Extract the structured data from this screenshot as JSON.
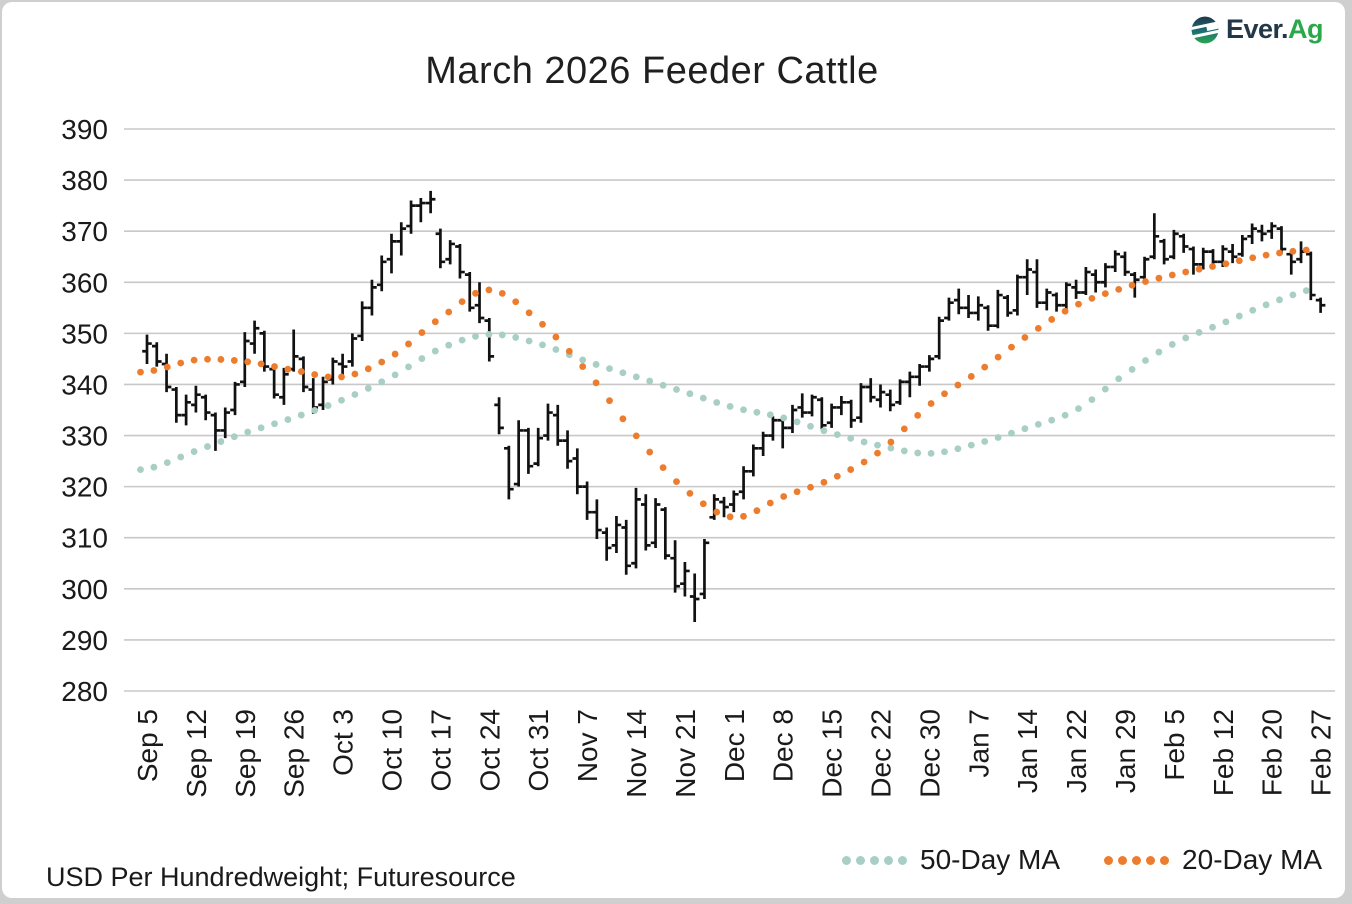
{
  "header": {
    "brand_primary": "Ever.",
    "brand_secondary": "Ag",
    "title": "March 2026 Feeder Cattle"
  },
  "footer": {
    "note": "USD Per Hundredweight; Futuresource"
  },
  "legend": {
    "items": [
      {
        "label": "50-Day MA",
        "color": "#A8CEC5"
      },
      {
        "label": "20-Day MA",
        "color": "#ED7D2E"
      }
    ]
  },
  "chart_data": {
    "type": "ohlc_bar",
    "title": "March 2026 Feeder Cattle",
    "ylabel": "USD Per Hundredweight",
    "ylim": [
      280,
      390
    ],
    "grid": true,
    "legend_position": "bottom-right",
    "colors": {
      "bar": "#111111",
      "grid": "#C8C8C8",
      "tick_text": "#1A1A1A",
      "ma50": "#A8CEC5",
      "ma20": "#ED7D2E"
    },
    "y_axis": {
      "ticks": [
        390,
        380,
        370,
        360,
        350,
        340,
        330,
        320,
        310,
        300,
        290,
        280
      ]
    },
    "x_axis": {
      "ticks": [
        "Sep 5",
        "Sep 12",
        "Sep 19",
        "Sep 26",
        "Oct 3",
        "Oct 10",
        "Oct 17",
        "Oct 24",
        "Oct 31",
        "Nov 7",
        "Nov 14",
        "Nov 21",
        "Dec 1",
        "Dec 8",
        "Dec 15",
        "Dec 22",
        "Dec 30",
        "Jan 7",
        "Jan 14",
        "Jan 22",
        "Jan 29",
        "Feb 5",
        "Feb 12",
        "Feb 20",
        "Feb 27"
      ],
      "bars_per_tick": 5
    },
    "series_ohlc": {
      "name": "Daily price (open, high, low, close)",
      "values": [
        [
          346.5,
          349.75,
          344.0,
          348.0
        ],
        [
          347.5,
          348.25,
          343.5,
          344.5
        ],
        [
          344.0,
          346.0,
          338.5,
          339.5
        ],
        [
          339.0,
          339.5,
          332.5,
          334.0
        ],
        [
          334.0,
          338.0,
          332.0,
          336.5
        ],
        [
          336.0,
          339.75,
          334.5,
          338.0
        ],
        [
          337.5,
          338.0,
          333.0,
          334.5
        ],
        [
          334.0,
          334.5,
          327.0,
          331.0
        ],
        [
          331.0,
          335.5,
          329.5,
          334.5
        ],
        [
          335.0,
          340.5,
          334.0,
          340.0
        ],
        [
          340.5,
          350.25,
          339.5,
          348.5
        ],
        [
          348.0,
          352.5,
          346.0,
          351.0
        ],
        [
          350.0,
          350.5,
          342.5,
          343.5
        ],
        [
          343.0,
          343.5,
          337.25,
          338.0
        ],
        [
          337.5,
          343.25,
          336.0,
          342.0
        ],
        [
          343.0,
          350.75,
          342.5,
          345.5
        ],
        [
          345.0,
          345.5,
          338.5,
          339.5
        ],
        [
          339.0,
          341.25,
          334.25,
          335.5
        ],
        [
          336.0,
          341.5,
          335.0,
          340.5
        ],
        [
          341.0,
          345.25,
          340.0,
          344.5
        ],
        [
          344.0,
          346.0,
          341.5,
          343.5
        ],
        [
          344.5,
          350.0,
          343.5,
          349.0
        ],
        [
          349.5,
          356.25,
          348.5,
          355.0
        ],
        [
          355.0,
          360.5,
          353.5,
          359.0
        ],
        [
          359.5,
          365.25,
          358.25,
          364.0
        ],
        [
          364.5,
          369.5,
          361.75,
          368.0
        ],
        [
          368.0,
          371.75,
          365.25,
          370.5
        ],
        [
          371.0,
          376.0,
          369.5,
          375.0
        ],
        [
          375.0,
          376.5,
          371.75,
          375.5
        ],
        [
          375.5,
          377.9,
          373.5,
          376.25
        ],
        [
          369.5,
          370.5,
          362.75,
          364.0
        ],
        [
          364.5,
          368.25,
          363.5,
          367.5
        ],
        [
          367.0,
          367.5,
          360.75,
          362.0
        ],
        [
          361.5,
          362.0,
          354.25,
          355.0
        ],
        [
          355.5,
          360.0,
          352.0,
          353.0
        ],
        [
          352.5,
          353.0,
          344.5,
          345.5
        ],
        [
          336.0,
          337.5,
          330.25,
          331.5
        ],
        [
          327.5,
          328.0,
          317.5,
          319.5
        ],
        [
          320.5,
          333.0,
          320.0,
          331.0
        ],
        [
          331.0,
          331.5,
          322.5,
          324.0
        ],
        [
          324.5,
          331.5,
          324.0,
          329.5
        ],
        [
          330.0,
          336.25,
          329.0,
          334.5
        ],
        [
          334.0,
          336.0,
          328.0,
          329.0
        ],
        [
          329.0,
          331.0,
          323.5,
          325.0
        ],
        [
          325.5,
          327.5,
          318.5,
          320.0
        ],
        [
          320.0,
          321.0,
          313.5,
          315.0
        ],
        [
          315.0,
          317.5,
          309.75,
          311.5
        ],
        [
          311.0,
          312.0,
          305.5,
          308.0
        ],
        [
          308.5,
          314.25,
          307.0,
          312.5
        ],
        [
          312.0,
          313.5,
          302.75,
          304.5
        ],
        [
          305.0,
          319.75,
          304.0,
          317.5
        ],
        [
          316.5,
          318.5,
          307.5,
          308.5
        ],
        [
          309.0,
          317.75,
          308.0,
          316.5
        ],
        [
          315.5,
          316.0,
          305.75,
          306.5
        ],
        [
          306.0,
          309.5,
          299.25,
          300.5
        ],
        [
          301.0,
          305.25,
          298.5,
          303.5
        ],
        [
          298.5,
          303.0,
          293.5,
          298.0
        ],
        [
          299.0,
          309.75,
          298.0,
          309.0
        ],
        [
          314.0,
          318.5,
          313.5,
          317.5
        ],
        [
          317.0,
          318.0,
          314.0,
          316.0
        ],
        [
          316.5,
          319.25,
          315.0,
          318.5
        ],
        [
          319.0,
          324.0,
          317.5,
          323.0
        ],
        [
          323.0,
          328.25,
          322.0,
          327.5
        ],
        [
          327.5,
          330.75,
          326.0,
          330.0
        ],
        [
          330.0,
          333.75,
          329.0,
          333.0
        ],
        [
          333.0,
          333.5,
          327.5,
          331.5
        ],
        [
          331.5,
          336.0,
          330.5,
          335.0
        ],
        [
          335.5,
          338.25,
          333.5,
          334.5
        ],
        [
          334.5,
          338.0,
          333.75,
          337.5
        ],
        [
          337.0,
          337.5,
          331.25,
          332.0
        ],
        [
          332.5,
          336.25,
          331.5,
          335.5
        ],
        [
          335.5,
          337.75,
          334.0,
          336.5
        ],
        [
          336.5,
          337.0,
          331.5,
          333.0
        ],
        [
          333.5,
          340.25,
          332.5,
          339.5
        ],
        [
          339.5,
          341.25,
          336.5,
          337.5
        ],
        [
          337.0,
          340.0,
          335.5,
          338.5
        ],
        [
          338.0,
          339.0,
          334.75,
          336.0
        ],
        [
          336.5,
          341.0,
          336.0,
          340.5
        ],
        [
          340.5,
          342.5,
          337.5,
          341.5
        ],
        [
          341.5,
          344.0,
          339.75,
          343.5
        ],
        [
          343.5,
          345.75,
          342.5,
          345.0
        ],
        [
          345.5,
          353.25,
          344.9,
          352.5
        ],
        [
          353.0,
          357.0,
          352.5,
          356.0
        ],
        [
          356.5,
          358.75,
          353.75,
          355.0
        ],
        [
          355.0,
          357.5,
          353.0,
          354.0
        ],
        [
          354.0,
          357.25,
          352.5,
          355.5
        ],
        [
          355.0,
          355.5,
          350.5,
          351.5
        ],
        [
          351.5,
          358.5,
          351.0,
          357.5
        ],
        [
          357.0,
          357.5,
          353.25,
          354.0
        ],
        [
          354.5,
          361.5,
          353.5,
          361.0
        ],
        [
          361.0,
          364.5,
          357.5,
          362.5
        ],
        [
          362.0,
          364.5,
          355.0,
          356.0
        ],
        [
          356.0,
          358.75,
          354.5,
          358.0
        ],
        [
          357.5,
          358.0,
          354.25,
          355.5
        ],
        [
          355.5,
          360.0,
          354.75,
          359.5
        ],
        [
          359.0,
          360.5,
          356.75,
          358.0
        ],
        [
          358.0,
          363.0,
          357.5,
          362.0
        ],
        [
          361.5,
          362.5,
          358.0,
          360.0
        ],
        [
          360.0,
          363.75,
          359.0,
          363.0
        ],
        [
          363.0,
          366.25,
          362.0,
          365.5
        ],
        [
          365.0,
          366.0,
          361.25,
          362.0
        ],
        [
          361.5,
          362.0,
          357.0,
          360.5
        ],
        [
          361.0,
          365.0,
          360.0,
          364.5
        ],
        [
          365.0,
          373.5,
          364.5,
          369.0
        ],
        [
          368.0,
          368.5,
          363.5,
          364.5
        ],
        [
          365.0,
          370.25,
          364.5,
          369.5
        ],
        [
          369.0,
          369.5,
          365.75,
          367.0
        ],
        [
          366.5,
          367.0,
          361.5,
          363.5
        ],
        [
          363.5,
          366.75,
          362.5,
          366.0
        ],
        [
          366.0,
          366.5,
          362.75,
          364.0
        ],
        [
          364.0,
          367.25,
          363.0,
          366.5
        ],
        [
          366.0,
          367.5,
          363.75,
          365.0
        ],
        [
          365.5,
          369.25,
          365.0,
          368.5
        ],
        [
          369.0,
          371.5,
          367.5,
          370.5
        ],
        [
          370.0,
          371.25,
          368.0,
          369.5
        ],
        [
          370.0,
          371.75,
          368.5,
          371.0
        ],
        [
          370.5,
          371.0,
          365.5,
          366.5
        ],
        [
          365.5,
          366.0,
          361.5,
          364.0
        ],
        [
          364.5,
          368.0,
          363.75,
          366.0
        ],
        [
          365.5,
          366.0,
          356.5,
          357.5
        ],
        [
          356.5,
          357.0,
          354.0,
          355.5
        ]
      ]
    },
    "moving_averages": [
      {
        "name": "50-Day MA",
        "color": "#A8CEC5",
        "values_at_ticks": [
          323.5,
          327.0,
          330.5,
          333.5,
          337.0,
          341.5,
          347.0,
          349.8,
          348.0,
          344.5,
          341.5,
          338.5,
          335.5,
          333.5,
          330.5,
          328.0,
          326.5,
          328.5,
          331.5,
          335.0,
          342.0,
          348.0,
          352.0,
          356.0,
          359.0
        ]
      },
      {
        "name": "20-Day MA",
        "color": "#ED7D2E",
        "values_at_ticks": [
          342.5,
          344.8,
          344.5,
          342.8,
          341.5,
          345.5,
          353.0,
          358.5,
          352.5,
          342.5,
          330.0,
          319.5,
          314.0,
          318.0,
          321.5,
          327.0,
          336.0,
          342.5,
          349.5,
          355.5,
          359.0,
          361.5,
          363.5,
          365.5,
          366.5
        ]
      }
    ]
  }
}
